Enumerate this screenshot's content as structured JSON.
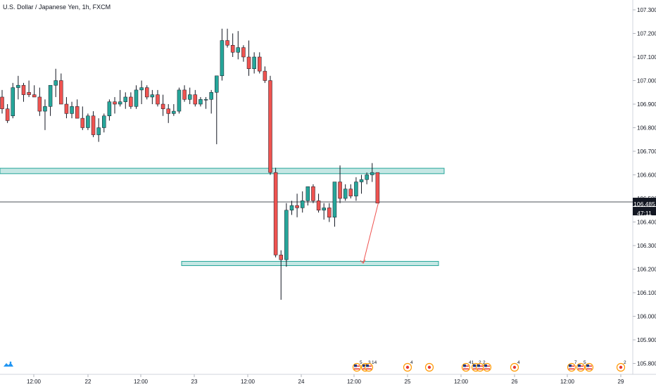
{
  "header": {
    "title": "U.S. Dollar / Japanese Yen, 1h, FXCM"
  },
  "price_scale": {
    "last_price": "106.485",
    "countdown": "47:11",
    "last_price_color": "#131722",
    "countdown_color": "#131722"
  },
  "colors": {
    "up": "#26a69a",
    "down": "#ef5350",
    "zone_fill": "#b2dfdb",
    "zone_stroke": "#26a69a",
    "arrow": "#ef5350",
    "price_line": "#131722"
  },
  "chart_data": {
    "type": "candlestick",
    "symbol": "USDJPY",
    "timeframe": "1h",
    "ylim": [
      105.78,
      107.35
    ],
    "y_ticks": [
      "107.300",
      "107.200",
      "107.100",
      "107.000",
      "106.900",
      "106.800",
      "106.700",
      "106.600",
      "106.500",
      "106.400",
      "106.300",
      "106.200",
      "106.100",
      "106.000",
      "105.900",
      "105.800"
    ],
    "x_ticks": [
      "12:00",
      "22",
      "12:00",
      "23",
      "12:00",
      "24",
      "12:00",
      "25",
      "12:00",
      "26",
      "12:00",
      "29"
    ],
    "candles_ohlc": [
      [
        106.93,
        106.96,
        106.86,
        106.88
      ],
      [
        106.88,
        106.9,
        106.82,
        106.83
      ],
      [
        106.85,
        106.99,
        106.84,
        106.97
      ],
      [
        106.97,
        107.02,
        106.92,
        106.98
      ],
      [
        106.98,
        106.99,
        106.91,
        106.94
      ],
      [
        106.95,
        107.0,
        106.93,
        106.94
      ],
      [
        106.94,
        106.98,
        106.93,
        106.93
      ],
      [
        106.93,
        106.97,
        106.85,
        106.87
      ],
      [
        106.87,
        106.92,
        106.79,
        106.89
      ],
      [
        106.89,
        106.96,
        106.85,
        106.98
      ],
      [
        106.98,
        107.05,
        106.93,
        107.0
      ],
      [
        107.0,
        107.03,
        106.92,
        106.9
      ],
      [
        106.9,
        106.93,
        106.84,
        106.86
      ],
      [
        106.86,
        106.91,
        106.84,
        106.89
      ],
      [
        106.89,
        106.92,
        106.84,
        106.84
      ],
      [
        106.84,
        106.89,
        106.79,
        106.8
      ],
      [
        106.8,
        106.86,
        106.79,
        106.85
      ],
      [
        106.85,
        106.87,
        106.76,
        106.77
      ],
      [
        106.77,
        106.84,
        106.74,
        106.8
      ],
      [
        106.8,
        106.86,
        106.78,
        106.85
      ],
      [
        106.85,
        106.92,
        106.83,
        106.91
      ],
      [
        106.91,
        106.93,
        106.86,
        106.9
      ],
      [
        106.9,
        106.96,
        106.89,
        106.91
      ],
      [
        106.91,
        106.95,
        106.88,
        106.93
      ],
      [
        106.93,
        106.95,
        106.88,
        106.89
      ],
      [
        106.89,
        106.98,
        106.88,
        106.96
      ],
      [
        106.96,
        107.0,
        106.9,
        106.97
      ],
      [
        106.97,
        106.98,
        106.92,
        106.93
      ],
      [
        106.93,
        106.96,
        106.9,
        106.94
      ],
      [
        106.94,
        106.96,
        106.89,
        106.9
      ],
      [
        106.9,
        106.94,
        106.85,
        106.88
      ],
      [
        106.88,
        106.9,
        106.82,
        106.86
      ],
      [
        106.86,
        106.9,
        106.85,
        106.87
      ],
      [
        106.87,
        106.97,
        106.86,
        106.96
      ],
      [
        106.96,
        106.98,
        106.91,
        106.92
      ],
      [
        106.92,
        106.97,
        106.9,
        106.94
      ],
      [
        106.94,
        106.96,
        106.89,
        106.9
      ],
      [
        106.9,
        106.93,
        106.89,
        106.92
      ],
      [
        106.92,
        106.93,
        106.88,
        106.92
      ],
      [
        106.92,
        106.96,
        106.86,
        106.95
      ],
      [
        106.95,
        107.0,
        106.73,
        107.02
      ],
      [
        107.02,
        107.22,
        107.0,
        107.17
      ],
      [
        107.17,
        107.22,
        107.14,
        107.15
      ],
      [
        107.15,
        107.2,
        107.1,
        107.12
      ],
      [
        107.12,
        107.21,
        107.09,
        107.14
      ],
      [
        107.14,
        107.15,
        107.08,
        107.1
      ],
      [
        107.1,
        107.17,
        107.02,
        107.05
      ],
      [
        107.05,
        107.12,
        107.03,
        107.1
      ],
      [
        107.1,
        107.12,
        107.03,
        107.04
      ],
      [
        107.04,
        107.06,
        106.99,
        107.0
      ],
      [
        107.0,
        107.02,
        106.6,
        106.61
      ],
      [
        106.61,
        106.63,
        106.25,
        106.26
      ],
      [
        106.26,
        106.28,
        106.07,
        106.24
      ],
      [
        106.24,
        106.48,
        106.21,
        106.45
      ],
      [
        106.45,
        106.49,
        106.43,
        106.47
      ],
      [
        106.47,
        106.52,
        106.42,
        106.46
      ],
      [
        106.46,
        106.53,
        106.44,
        106.49
      ],
      [
        106.49,
        106.55,
        106.47,
        106.55
      ],
      [
        106.55,
        106.56,
        106.48,
        106.49
      ],
      [
        106.49,
        106.52,
        106.44,
        106.45
      ],
      [
        106.45,
        106.48,
        106.41,
        106.46
      ],
      [
        106.46,
        106.48,
        106.4,
        106.42
      ],
      [
        106.42,
        106.49,
        106.38,
        106.57
      ],
      [
        106.57,
        106.64,
        106.48,
        106.5
      ],
      [
        106.5,
        106.56,
        106.49,
        106.54
      ],
      [
        106.54,
        106.56,
        106.5,
        106.51
      ],
      [
        106.51,
        106.59,
        106.49,
        106.57
      ],
      [
        106.57,
        106.6,
        106.52,
        106.58
      ],
      [
        106.58,
        106.61,
        106.56,
        106.6
      ],
      [
        106.6,
        106.65,
        106.57,
        106.61
      ],
      [
        106.61,
        106.61,
        106.48,
        106.48
      ]
    ],
    "zones": [
      {
        "name": "resistance-zone",
        "top": 106.628,
        "bottom": 106.605
      },
      {
        "name": "support-zone",
        "top": 106.233,
        "bottom": 106.215
      }
    ],
    "last_price": 106.485,
    "projection_arrow": {
      "from": [
        70,
        106.48
      ],
      "to": [
        76,
        106.225
      ]
    },
    "events": [
      {
        "type": "us",
        "count": "5",
        "pos": 507
      },
      {
        "type": "us",
        "count": "3",
        "pos": 519
      },
      {
        "type": "us",
        "count": "14",
        "pos": 524
      },
      {
        "type": "dot",
        "count": "4",
        "pos": 579
      },
      {
        "type": "dot",
        "count": "",
        "pos": 610
      },
      {
        "type": "us",
        "count": "41",
        "pos": 662
      },
      {
        "type": "us",
        "count": "2",
        "pos": 676
      },
      {
        "type": "us",
        "count": "2",
        "pos": 682
      },
      {
        "type": "us",
        "count": "",
        "pos": 692
      },
      {
        "type": "dot",
        "count": "4",
        "pos": 731
      },
      {
        "type": "us",
        "count": "7",
        "pos": 812
      },
      {
        "type": "us",
        "count": "5",
        "pos": 825
      },
      {
        "type": "us",
        "count": "",
        "pos": 837
      },
      {
        "type": "dot",
        "count": "2",
        "pos": 882
      }
    ]
  }
}
